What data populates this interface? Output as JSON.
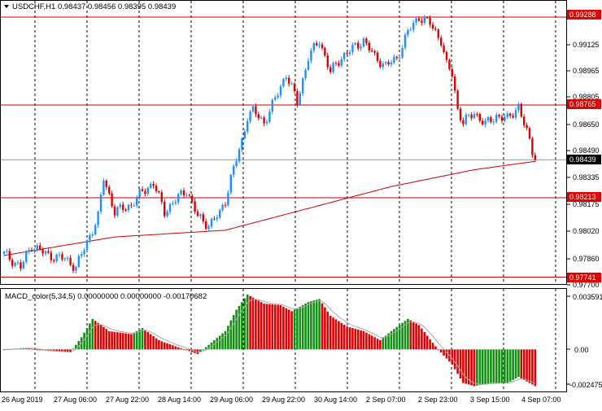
{
  "header": {
    "symbol_line": "USDCHF,H1  0.98437 0.98456 0.98395 0.98439"
  },
  "macd": {
    "label": "MACD_color(5,34,5) 0.00000000 0.00000000 -0.00170682",
    "tick_labels": [
      "0.003591",
      "0.00",
      "-0.002475"
    ]
  },
  "price_axis": {
    "tick_labels": [
      "0.99125",
      "0.98965",
      "0.98805",
      "0.98650",
      "0.98490",
      "0.98335",
      "0.98175",
      "0.98020",
      "0.97860",
      "0.97700"
    ],
    "level_labels": [
      "0.99288",
      "0.98765",
      "0.98213",
      "0.97741"
    ],
    "current_price_label": "0.98439"
  },
  "time_axis": {
    "tick_labels": [
      "26 Aug 2019",
      "27 Aug 06:00",
      "27 Aug 22:00",
      "28 Aug 14:00",
      "29 Aug 06:00",
      "29 Aug 22:00",
      "30 Aug 14:00",
      "2 Sep 07:00",
      "2 Sep 23:00",
      "3 Sep 15:00",
      "4 Sep 07:00"
    ]
  },
  "chart_data": {
    "type": "candlestick",
    "title": "USDCHF,H1  0.98437 0.98456 0.98395 0.98439",
    "ylim": [
      0.977,
      0.9938
    ],
    "levels": [
      0.99288,
      0.98765,
      0.98213,
      0.97741
    ],
    "current_price": 0.98439,
    "colors": {
      "bull": "#1e90ff",
      "bear": "#dd0000",
      "level": "#cc0000",
      "ma": "#cc0000",
      "macd_up": "#109010",
      "macd_down": "#dd0000",
      "signal": "#aaaaaa",
      "grid": "#000000"
    },
    "close_path": [
      [
        0,
        0.9788
      ],
      [
        6,
        0.978
      ],
      [
        10,
        0.9793
      ],
      [
        16,
        0.9787
      ],
      [
        22,
        0.9785
      ],
      [
        26,
        0.978
      ],
      [
        30,
        0.9795
      ],
      [
        34,
        0.981
      ],
      [
        36,
        0.9833
      ],
      [
        40,
        0.9813
      ],
      [
        46,
        0.9817
      ],
      [
        50,
        0.9825
      ],
      [
        54,
        0.983
      ],
      [
        58,
        0.9813
      ],
      [
        62,
        0.982
      ],
      [
        66,
        0.9826
      ],
      [
        70,
        0.981
      ],
      [
        74,
        0.9805
      ],
      [
        78,
        0.9812
      ],
      [
        80,
        0.982
      ],
      [
        82,
        0.9833
      ],
      [
        86,
        0.9855
      ],
      [
        88,
        0.987
      ],
      [
        90,
        0.9873
      ],
      [
        94,
        0.9866
      ],
      [
        98,
        0.988
      ],
      [
        102,
        0.9895
      ],
      [
        106,
        0.9878
      ],
      [
        110,
        0.9905
      ],
      [
        114,
        0.9915
      ],
      [
        118,
        0.9896
      ],
      [
        122,
        0.9905
      ],
      [
        126,
        0.991
      ],
      [
        130,
        0.9915
      ],
      [
        134,
        0.9905
      ],
      [
        138,
        0.99
      ],
      [
        142,
        0.9904
      ],
      [
        146,
        0.992
      ],
      [
        150,
        0.9929
      ],
      [
        154,
        0.9925
      ],
      [
        158,
        0.9915
      ],
      [
        160,
        0.99
      ],
      [
        162,
        0.9895
      ],
      [
        164,
        0.9874
      ],
      [
        166,
        0.9866
      ],
      [
        170,
        0.9872
      ],
      [
        174,
        0.9865
      ],
      [
        178,
        0.987
      ],
      [
        182,
        0.9868
      ],
      [
        186,
        0.9876
      ],
      [
        188,
        0.9865
      ],
      [
        190,
        0.9855
      ],
      [
        192,
        0.98439
      ]
    ],
    "ma_path": [
      [
        0,
        0.9787
      ],
      [
        40,
        0.9798
      ],
      [
        80,
        0.9802
      ],
      [
        110,
        0.9815
      ],
      [
        140,
        0.9828
      ],
      [
        170,
        0.9838
      ],
      [
        192,
        0.9843
      ]
    ],
    "macd_path": [
      [
        0,
        0.0
      ],
      [
        8,
        0.0001
      ],
      [
        16,
        -0.0001
      ],
      [
        24,
        -0.0002
      ],
      [
        28,
        0.0008
      ],
      [
        32,
        0.002
      ],
      [
        38,
        0.0012
      ],
      [
        46,
        0.001
      ],
      [
        50,
        0.0014
      ],
      [
        56,
        0.0006
      ],
      [
        62,
        0.0002
      ],
      [
        70,
        -0.0003
      ],
      [
        74,
        0.0003
      ],
      [
        80,
        0.0012
      ],
      [
        84,
        0.0026
      ],
      [
        88,
        0.00359
      ],
      [
        94,
        0.003
      ],
      [
        100,
        0.0029
      ],
      [
        104,
        0.0025
      ],
      [
        110,
        0.0031
      ],
      [
        114,
        0.0033
      ],
      [
        118,
        0.0022
      ],
      [
        124,
        0.0015
      ],
      [
        130,
        0.0012
      ],
      [
        136,
        0.0006
      ],
      [
        140,
        0.0012
      ],
      [
        146,
        0.002
      ],
      [
        150,
        0.0016
      ],
      [
        156,
        0.0002
      ],
      [
        162,
        -0.001
      ],
      [
        166,
        -0.0022
      ],
      [
        170,
        -0.0024
      ],
      [
        176,
        -0.0022
      ],
      [
        182,
        -0.0022
      ],
      [
        186,
        -0.0018
      ],
      [
        190,
        -0.0022
      ],
      [
        192,
        -0.0024
      ]
    ],
    "macd_ylim": [
      -0.0027,
      0.0038
    ]
  }
}
